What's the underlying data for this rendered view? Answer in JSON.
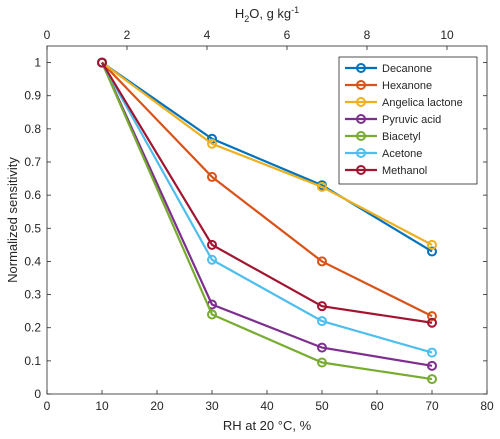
{
  "chart_data": {
    "type": "line",
    "title": "",
    "xlabel": "RH at 20 °C, %",
    "ylabel": "Normalized sensitivity",
    "x2label_base": "H",
    "x2label_sub": "2",
    "x2label_rest": "O, g kg",
    "x2label_sup": "-1",
    "xlim": [
      0,
      80
    ],
    "ylim": [
      0,
      1.05
    ],
    "x2lim": [
      0,
      11
    ],
    "xticks": [
      0,
      10,
      20,
      30,
      40,
      50,
      60,
      70,
      80
    ],
    "yticks": [
      0,
      0.1,
      0.2,
      0.3,
      0.4,
      0.5,
      0.6,
      0.7,
      0.8,
      0.9,
      1
    ],
    "x2ticks": [
      0,
      2,
      4,
      6,
      8,
      10
    ],
    "grid": false,
    "legend_position": "top-right",
    "x": [
      10,
      30,
      50,
      70
    ],
    "series": [
      {
        "name": "Decanone",
        "color": "#0072BD",
        "values": [
          1,
          0.77,
          0.63,
          0.43
        ]
      },
      {
        "name": "Hexanone",
        "color": "#D95319",
        "values": [
          1,
          0.655,
          0.4,
          0.235
        ]
      },
      {
        "name": "Angelica lactone",
        "color": "#EDB120",
        "values": [
          1,
          0.755,
          0.625,
          0.45
        ]
      },
      {
        "name": "Pyruvic acid",
        "color": "#7E2F8E",
        "values": [
          1,
          0.27,
          0.14,
          0.085
        ]
      },
      {
        "name": "Biacetyl",
        "color": "#77AC30",
        "values": [
          1,
          0.24,
          0.095,
          0.045
        ]
      },
      {
        "name": "Acetone",
        "color": "#4DBEEE",
        "values": [
          1,
          0.405,
          0.22,
          0.125
        ]
      },
      {
        "name": "Methanol",
        "color": "#A2142F",
        "values": [
          1,
          0.45,
          0.265,
          0.215
        ]
      }
    ]
  }
}
